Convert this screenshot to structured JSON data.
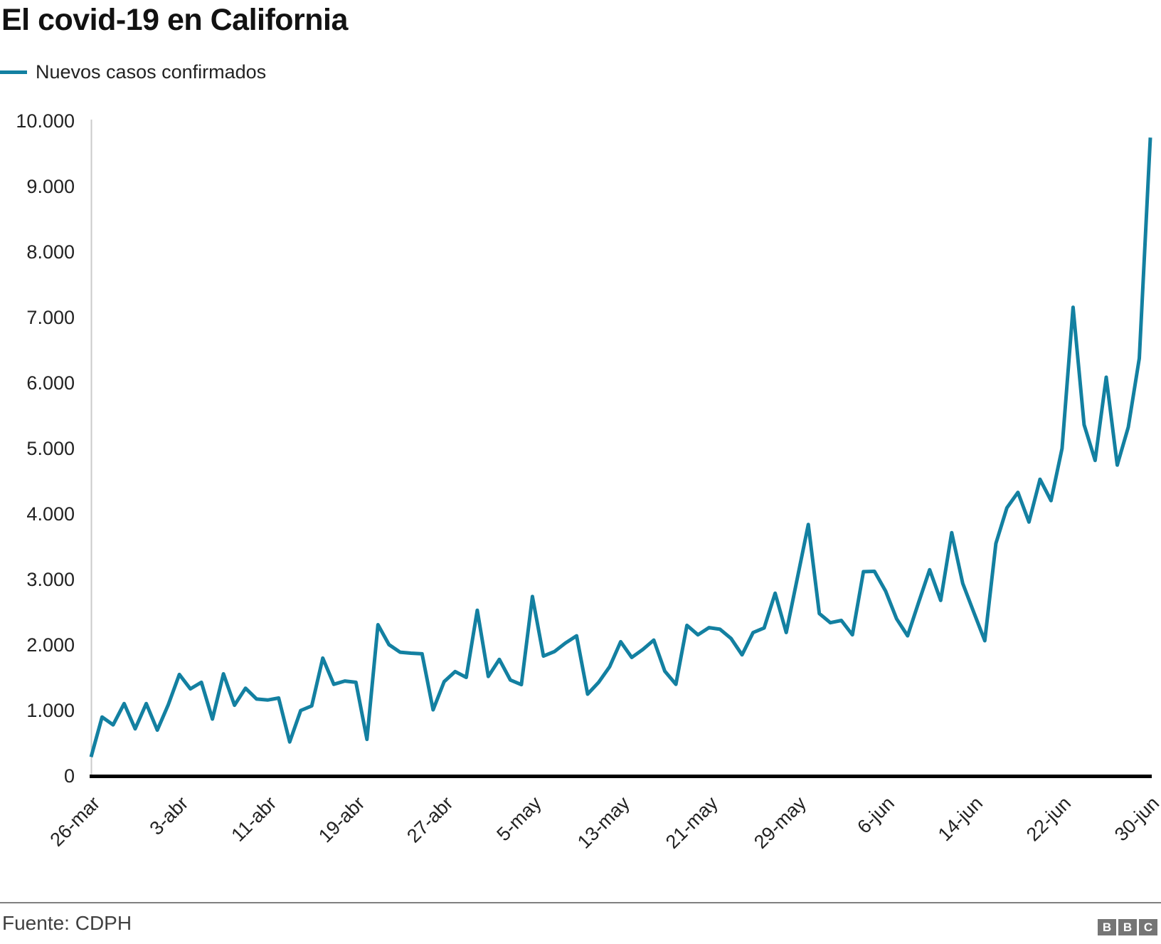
{
  "header": {
    "title": "El covid-19 en California"
  },
  "legend": {
    "label": "Nuevos casos confirmados",
    "position": "top-left"
  },
  "chart_data": {
    "type": "line",
    "title": "El covid-19 en California",
    "xlabel": "",
    "ylabel": "",
    "ylim": [
      0,
      10000
    ],
    "grid": "none",
    "legend_position": "top-left",
    "line_color": "#1380A1",
    "y_tick_labels": [
      "0",
      "1.000",
      "2.000",
      "3.000",
      "4.000",
      "5.000",
      "6.000",
      "7.000",
      "8.000",
      "9.000",
      "10.000"
    ],
    "y_tick_values": [
      0,
      1000,
      2000,
      3000,
      4000,
      5000,
      6000,
      7000,
      8000,
      9000,
      10000
    ],
    "x_tick_labels": [
      "26-mar",
      "3-abr",
      "11-abr",
      "19-abr",
      "27-abr",
      "5-may",
      "13-may",
      "21-may",
      "29-may",
      "6-jun",
      "14-jun",
      "22-jun",
      "30-jun"
    ],
    "x_tick_day_indices": [
      0,
      8,
      16,
      24,
      32,
      40,
      48,
      56,
      64,
      72,
      80,
      88,
      96
    ],
    "x_frequency": "daily",
    "series": [
      {
        "name": "Nuevos casos confirmados",
        "color": "#1380A1",
        "values": [
          290,
          900,
          780,
          1105,
          720,
          1105,
          700,
          1090,
          1550,
          1330,
          1430,
          870,
          1560,
          1080,
          1340,
          1175,
          1160,
          1190,
          520,
          1000,
          1070,
          1800,
          1400,
          1450,
          1430,
          560,
          2310,
          2005,
          1890,
          1875,
          1865,
          1010,
          1440,
          1595,
          1505,
          2530,
          1520,
          1780,
          1465,
          1395,
          2740,
          1830,
          1900,
          2030,
          2140,
          1250,
          1430,
          1670,
          2050,
          1810,
          1930,
          2075,
          1600,
          1400,
          2300,
          2155,
          2265,
          2240,
          2100,
          1850,
          2190,
          2260,
          2790,
          2190,
          3015,
          3840,
          2480,
          2340,
          2375,
          2155,
          3120,
          3125,
          2825,
          2400,
          2140,
          2650,
          3150,
          2680,
          3715,
          2940,
          2500,
          2065,
          3550,
          4095,
          4330,
          3877,
          4530,
          4204,
          5000,
          7157,
          5363,
          4819,
          6088,
          4747,
          5326,
          6377,
          9748
        ]
      }
    ]
  },
  "footer": {
    "source": "Fuente: CDPH",
    "logo_letters": [
      "B",
      "B",
      "C"
    ]
  },
  "colors": {
    "line": "#1380A1",
    "axis": "#000000",
    "y_axis_line": "#cbcbcb",
    "tick_text": "#222222",
    "title_text": "#121212",
    "source_text": "#404040",
    "divider": "#808080",
    "bbc_block": "#757575"
  }
}
